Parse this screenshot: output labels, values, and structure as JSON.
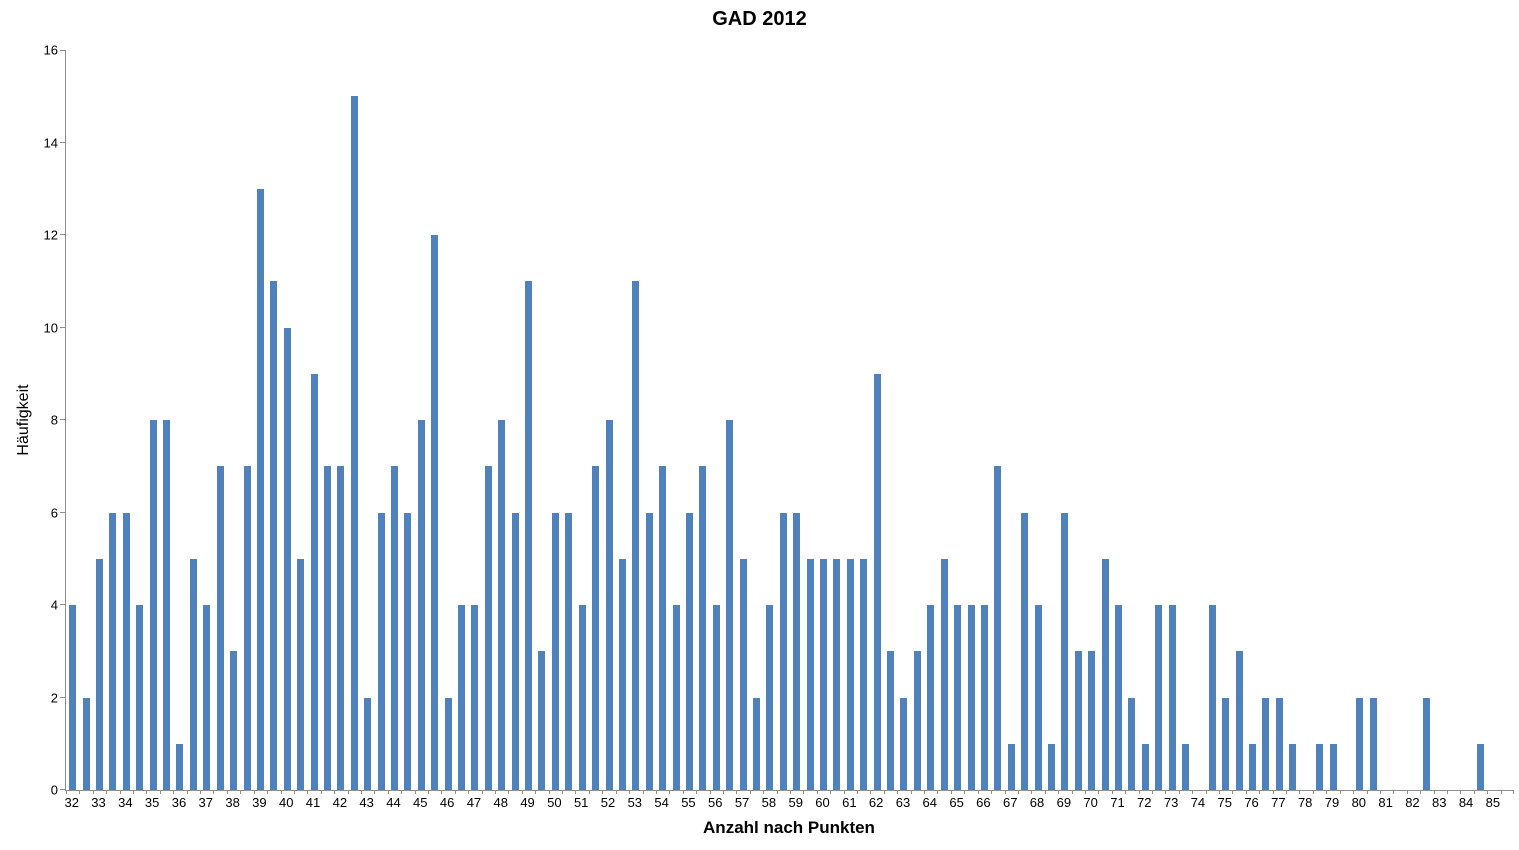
{
  "chart_data": {
    "type": "bar",
    "title": "GAD 2012",
    "xlabel": "Anzahl nach Punkten",
    "ylabel": "Häufigkeit",
    "x": [
      32,
      32.5,
      33,
      33.5,
      34,
      34.5,
      35,
      35.5,
      36,
      36.5,
      37,
      37.5,
      38,
      38.5,
      39,
      39.5,
      40,
      40.5,
      41,
      41.5,
      42,
      42.5,
      43,
      43.5,
      44,
      44.5,
      45,
      45.5,
      46,
      46.5,
      47,
      47.5,
      48,
      48.5,
      49,
      49.5,
      50,
      50.5,
      51,
      51.5,
      52,
      52.5,
      53,
      53.5,
      54,
      54.5,
      55,
      55.5,
      56,
      56.5,
      57,
      57.5,
      58,
      58.5,
      59,
      59.5,
      60,
      60.5,
      61,
      61.5,
      62,
      62.5,
      63,
      63.5,
      64,
      64.5,
      65,
      65.5,
      66,
      66.5,
      67,
      67.5,
      68,
      68.5,
      69,
      69.5,
      70,
      70.5,
      71,
      71.5,
      72,
      72.5,
      73,
      73.5,
      74,
      74.5,
      75,
      75.5,
      76,
      76.5,
      77,
      77.5,
      78,
      78.5,
      79,
      79.5,
      80,
      80.5,
      81,
      81.5,
      82,
      82.5,
      83,
      83.5,
      84,
      84.5,
      85,
      85.5
    ],
    "values": [
      4,
      2,
      5,
      6,
      6,
      4,
      8,
      8,
      1,
      5,
      4,
      7,
      3,
      7,
      13,
      11,
      10,
      5,
      9,
      7,
      7,
      15,
      2,
      6,
      7,
      6,
      8,
      12,
      2,
      4,
      4,
      7,
      8,
      6,
      11,
      3,
      6,
      6,
      4,
      7,
      8,
      5,
      11,
      6,
      7,
      4,
      6,
      7,
      4,
      8,
      5,
      2,
      4,
      6,
      6,
      5,
      5,
      5,
      5,
      5,
      9,
      3,
      2,
      3,
      4,
      5,
      4,
      4,
      4,
      7,
      1,
      6,
      4,
      1,
      6,
      3,
      3,
      5,
      4,
      2,
      1,
      4,
      4,
      1,
      0,
      4,
      2,
      3,
      1,
      2,
      2,
      1,
      0,
      1,
      1,
      0,
      2,
      2,
      0,
      0,
      0,
      2,
      0,
      0,
      0,
      1,
      0,
      0
    ],
    "x_tick_labels": [
      "32",
      "33",
      "34",
      "35",
      "36",
      "37",
      "38",
      "39",
      "40",
      "41",
      "42",
      "43",
      "44",
      "45",
      "46",
      "47",
      "48",
      "49",
      "50",
      "51",
      "52",
      "53",
      "54",
      "55",
      "56",
      "57",
      "58",
      "59",
      "60",
      "61",
      "62",
      "63",
      "64",
      "65",
      "66",
      "67",
      "68",
      "69",
      "70",
      "71",
      "72",
      "73",
      "74",
      "75",
      "76",
      "77",
      "78",
      "79",
      "80",
      "81",
      "82",
      "83",
      "84",
      "85"
    ],
    "y_ticks": [
      0,
      2,
      4,
      6,
      8,
      10,
      12,
      14,
      16
    ],
    "ylim": [
      0,
      16
    ],
    "xlim": [
      32,
      85.5
    ],
    "grid": false,
    "legend": false,
    "bar_color": "#4F81BD",
    "axis_color": "#8E8E8E",
    "text_color": "#000000"
  }
}
